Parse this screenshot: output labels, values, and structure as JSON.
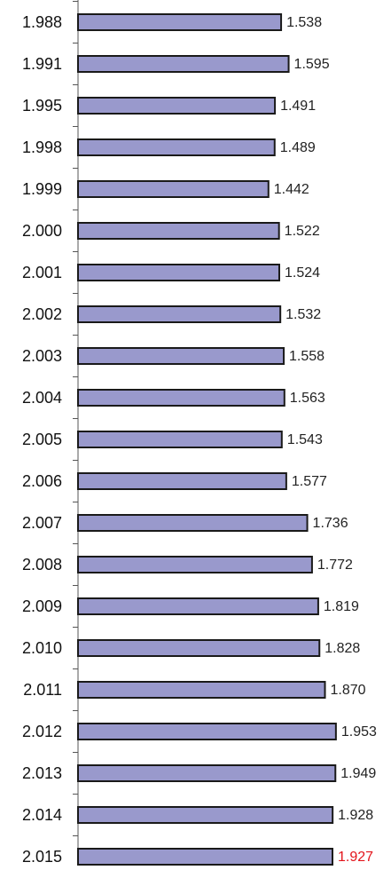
{
  "chart_data": {
    "type": "hbar",
    "categories": [
      "1.988",
      "1.991",
      "1.995",
      "1.998",
      "1.999",
      "2.000",
      "2.001",
      "2.002",
      "2.003",
      "2.004",
      "2.005",
      "2.006",
      "2.007",
      "2.008",
      "2.009",
      "2.010",
      "2.011",
      "2.012",
      "2.013",
      "2.014",
      "2.015"
    ],
    "values": [
      1538,
      1595,
      1491,
      1489,
      1442,
      1522,
      1524,
      1532,
      1558,
      1563,
      1543,
      1577,
      1736,
      1772,
      1819,
      1828,
      1870,
      1953,
      1949,
      1928,
      1927
    ],
    "value_labels": [
      "1.538",
      "1.595",
      "1.491",
      "1.489",
      "1.442",
      "1.522",
      "1.524",
      "1.532",
      "1.558",
      "1.563",
      "1.543",
      "1.577",
      "1.736",
      "1.772",
      "1.819",
      "1.828",
      "1.870",
      "1.953",
      "1.949",
      "1.928",
      "1.927"
    ],
    "value_label_colors": [
      "#222222",
      "#222222",
      "#222222",
      "#222222",
      "#222222",
      "#222222",
      "#222222",
      "#222222",
      "#222222",
      "#222222",
      "#222222",
      "#222222",
      "#222222",
      "#222222",
      "#222222",
      "#222222",
      "#222222",
      "#222222",
      "#222222",
      "#222222",
      "#e3141b"
    ],
    "color": "#9999cc",
    "xlim": [
      0,
      2350
    ]
  }
}
